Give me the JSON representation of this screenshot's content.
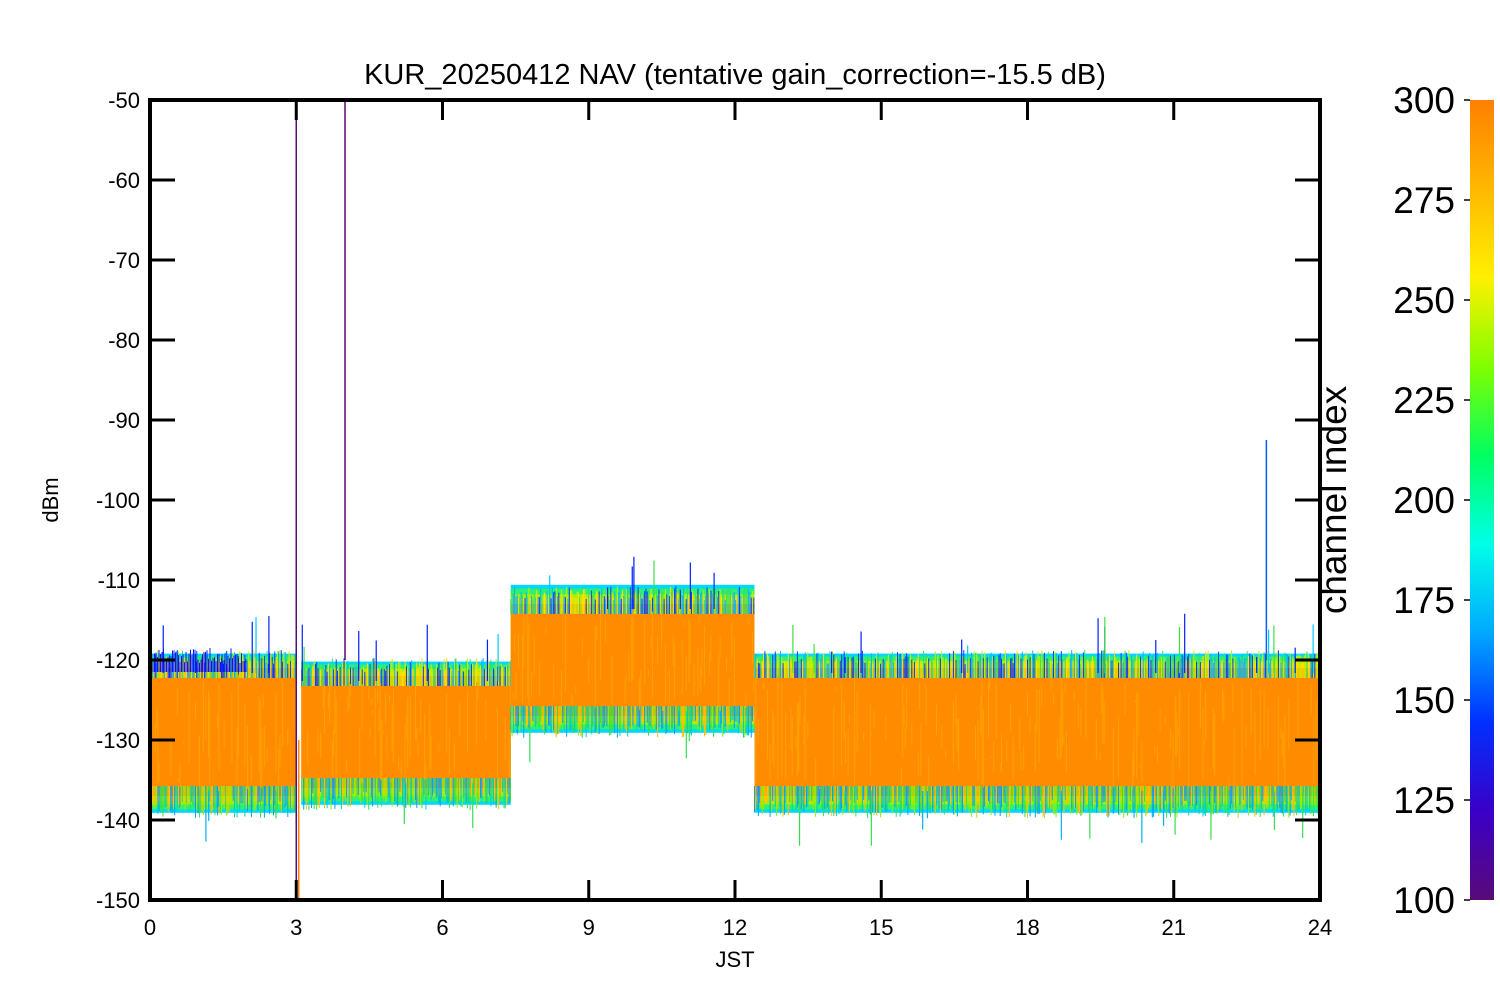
{
  "chart_data": {
    "type": "line",
    "title": "KUR_20250412 NAV (tentative gain_correction=-15.5 dB)",
    "xlabel": "JST",
    "ylabel": "dBm",
    "xlim": [
      0,
      24
    ],
    "ylim": [
      -150,
      -50
    ],
    "xticks": [
      "0",
      "3",
      "6",
      "9",
      "12",
      "15",
      "18",
      "21",
      "24"
    ],
    "yticks": [
      "-50",
      "-60",
      "-70",
      "-80",
      "-90",
      "-100",
      "-110",
      "-120",
      "-130",
      "-140",
      "-150"
    ],
    "x_tick_values": [
      0,
      3,
      6,
      9,
      12,
      15,
      18,
      21,
      24
    ],
    "y_tick_values": [
      -50,
      -60,
      -70,
      -80,
      -90,
      -100,
      -110,
      -120,
      -130,
      -140,
      -150
    ],
    "grid": false,
    "colorbar": {
      "label": "channel index",
      "range": [
        100,
        300
      ],
      "ticks": [
        "300",
        "275",
        "250",
        "225",
        "200",
        "175",
        "150",
        "125",
        "100"
      ],
      "tick_values": [
        300,
        275,
        250,
        225,
        200,
        175,
        150,
        125,
        100
      ],
      "colormap": [
        "#5a0a78",
        "#3a00c8",
        "#0030ff",
        "#00a8ff",
        "#00ffe8",
        "#00ff60",
        "#80ff00",
        "#fff000",
        "#ffb800",
        "#ff8000"
      ]
    },
    "segments": [
      {
        "x": [
          0.0,
          3.0
        ],
        "center": -129,
        "upper": -121,
        "lower": -137
      },
      {
        "x": [
          3.1,
          7.4
        ],
        "center": -129,
        "upper": -122,
        "lower": -136
      },
      {
        "x": [
          7.4,
          12.4
        ],
        "center": -120,
        "upper": -113,
        "lower": -127
      },
      {
        "x": [
          12.4,
          24.0
        ],
        "center": -129,
        "upper": -121,
        "lower": -137
      }
    ],
    "gap": [
      3.0,
      3.1
    ],
    "spikes": [
      {
        "x": 3.0,
        "y_top": -50,
        "y_bottom": -150,
        "color": "#5a0a78"
      },
      {
        "x": 3.05,
        "y_top": -150,
        "y_bottom": -130,
        "color": "#ff8000"
      },
      {
        "x": 4.0,
        "y_top": -50,
        "y_bottom": -120,
        "color": "#5a0a78"
      },
      {
        "x": 22.9,
        "y_top": -92.5,
        "y_bottom": -120,
        "color": "#0060ff"
      }
    ]
  }
}
